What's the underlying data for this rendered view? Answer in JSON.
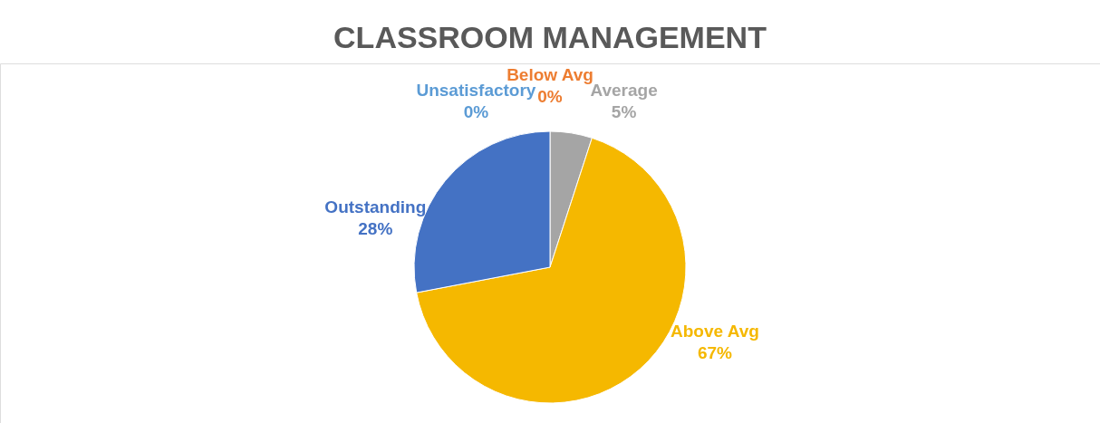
{
  "chart_data": {
    "type": "pie",
    "title": "CLASSROOM MANAGEMENT",
    "categories": [
      "Unsatisfactory",
      "Below Avg",
      "Average",
      "Above Avg",
      "Outstanding"
    ],
    "values": [
      0,
      0,
      5,
      67,
      28
    ],
    "value_labels": [
      "0%",
      "0%",
      "5%",
      "67%",
      "28%"
    ],
    "colors": [
      "#5b9bd5",
      "#ed7d31",
      "#a5a5a5",
      "#f5b800",
      "#4472c4"
    ],
    "legend": false
  }
}
